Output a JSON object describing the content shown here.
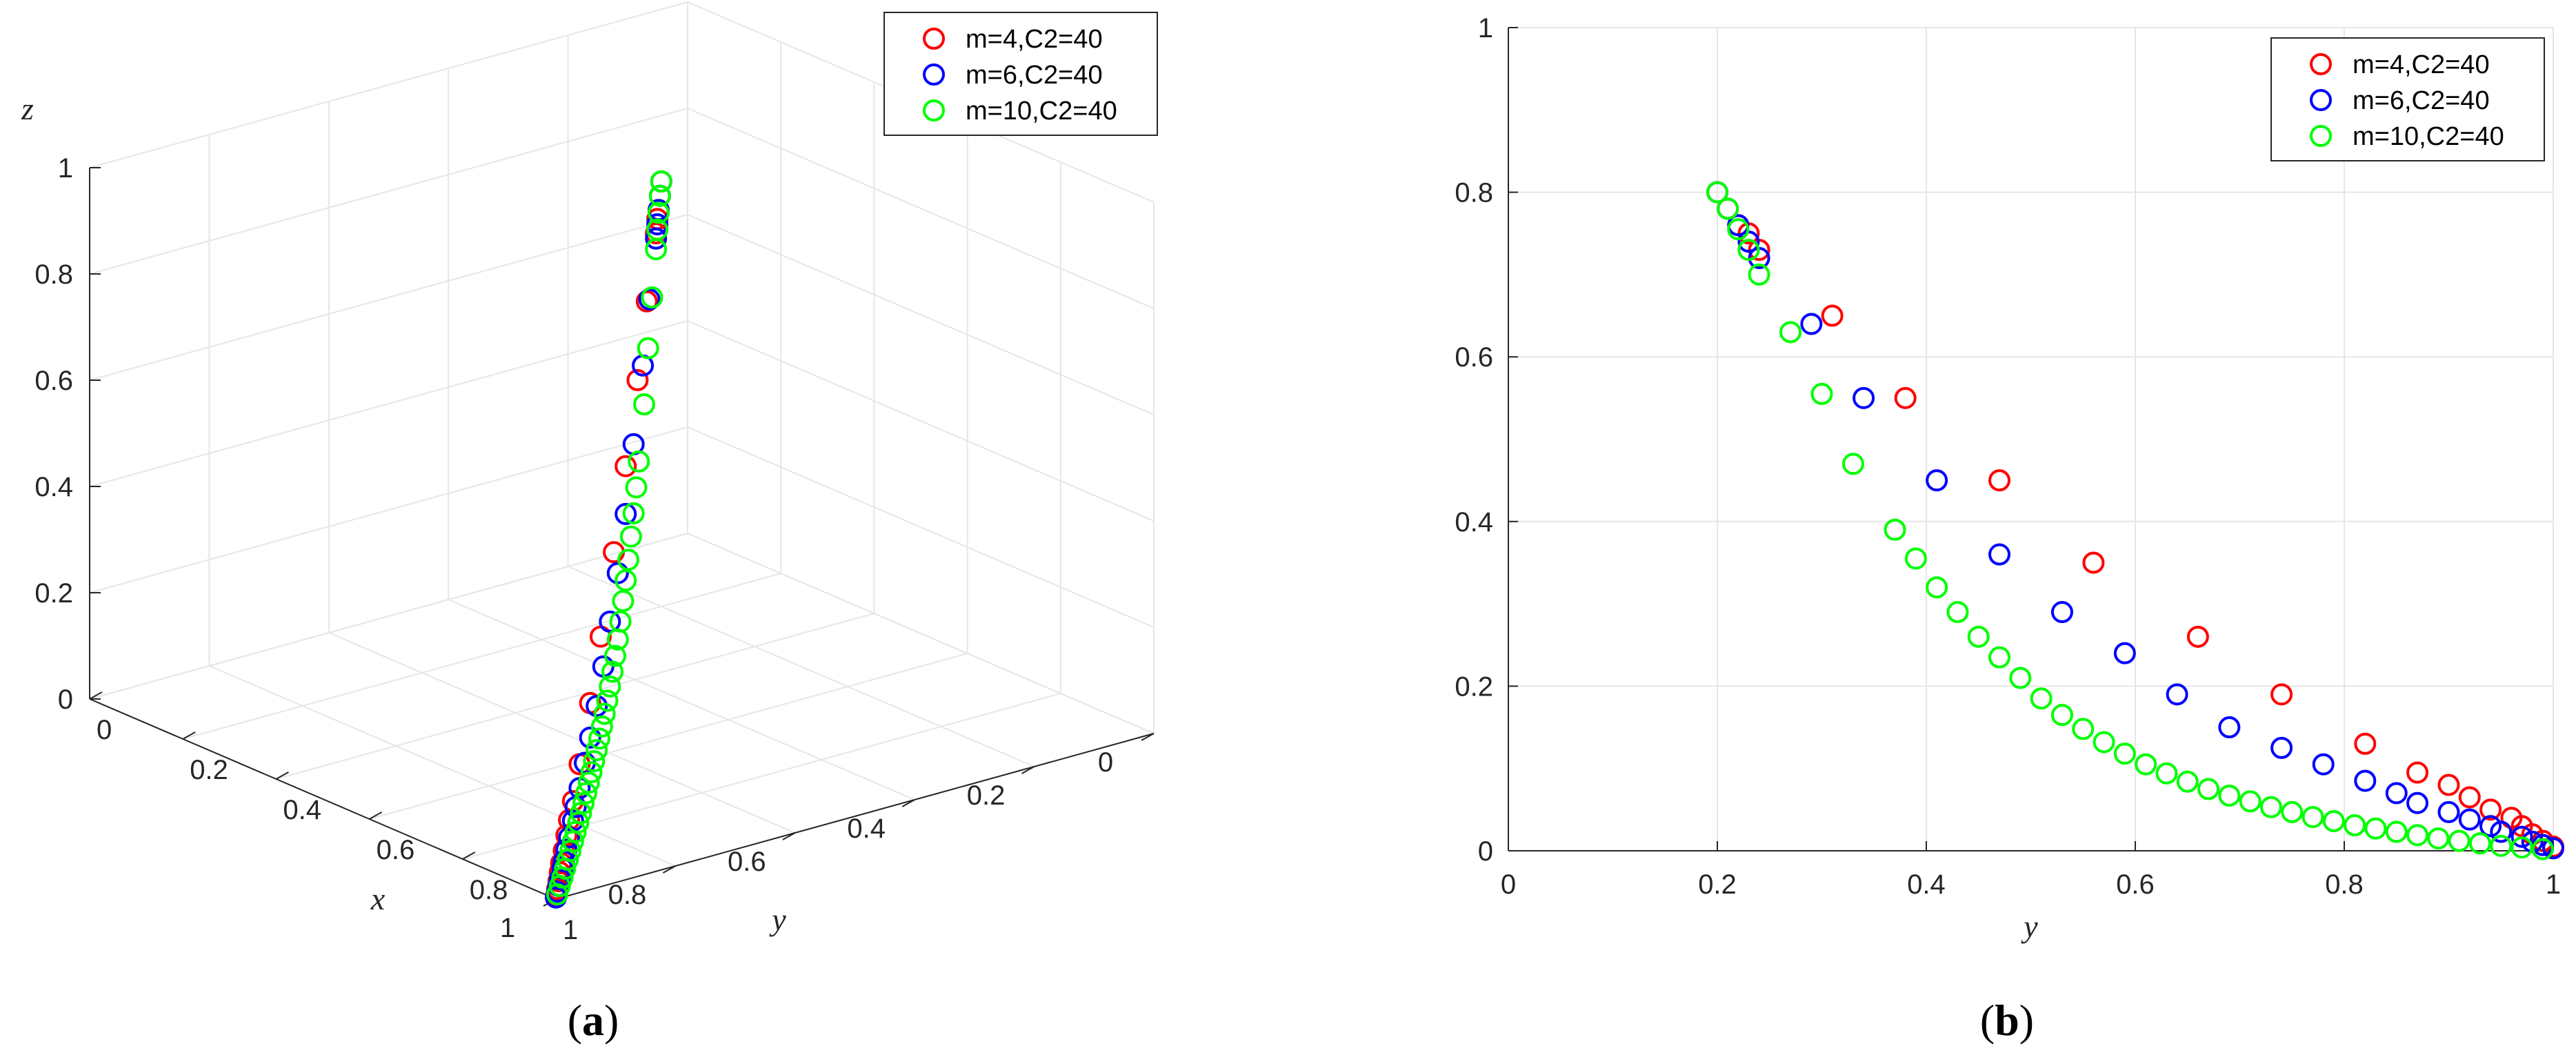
{
  "colors": {
    "s1": "#ff0000",
    "s2": "#0000ff",
    "s3": "#00ff00",
    "grid": "#e6e6e6",
    "axis": "#262626"
  },
  "legend": [
    {
      "label": "m=4,C2=40"
    },
    {
      "label": "m=6,C2=40"
    },
    {
      "label": "m=10,C2=40"
    }
  ],
  "captions": {
    "a": {
      "open": "(",
      "letter": "a",
      "close": ")"
    },
    "b": {
      "open": "(",
      "letter": "b",
      "close": ")"
    }
  },
  "chart_data": [
    {
      "id": "a",
      "type": "scatter",
      "projection": "3d",
      "xlabel": "x",
      "ylabel": "y",
      "zlabel": "z",
      "xlim": [
        0,
        1
      ],
      "ylim": [
        0,
        1
      ],
      "zlim": [
        0,
        1
      ],
      "xticks": [
        "0",
        "0.2",
        "0.4",
        "0.6",
        "0.8",
        "1"
      ],
      "yticks": [
        "0",
        "0.2",
        "0.4",
        "0.6",
        "0.8",
        "1"
      ],
      "zticks": [
        "0",
        "0.2",
        "0.4",
        "0.6",
        "0.8",
        "1"
      ],
      "grid": true,
      "legend_position": "top-right",
      "series": [
        {
          "name": "m=4,C2=40",
          "marker": "open-circle",
          "points": [
            [
              0.2,
              0.2,
              0.8
            ],
            [
              0.21,
              0.21,
              0.78
            ],
            [
              0.22,
              0.22,
              0.76
            ],
            [
              0.23,
              0.23,
              0.75
            ],
            [
              0.24,
              0.24,
              0.73
            ],
            [
              0.31,
              0.31,
              0.65
            ],
            [
              0.38,
              0.38,
              0.55
            ],
            [
              0.47,
              0.47,
              0.45
            ],
            [
              0.56,
              0.56,
              0.35
            ],
            [
              0.66,
              0.66,
              0.26
            ],
            [
              0.74,
              0.74,
              0.19
            ],
            [
              0.82,
              0.82,
              0.13
            ],
            [
              0.87,
              0.87,
              0.095
            ],
            [
              0.9,
              0.9,
              0.08
            ],
            [
              0.92,
              0.92,
              0.065
            ],
            [
              0.94,
              0.94,
              0.05
            ],
            [
              0.96,
              0.96,
              0.04
            ],
            [
              0.97,
              0.97,
              0.03
            ],
            [
              0.98,
              0.98,
              0.02
            ],
            [
              0.99,
              0.99,
              0.012
            ],
            [
              1.0,
              1.0,
              0.005
            ]
          ]
        },
        {
          "name": "m=6,C2=40",
          "marker": "open-circle",
          "points": [
            [
              0.2,
              0.2,
              0.8
            ],
            [
              0.21,
              0.21,
              0.78
            ],
            [
              0.22,
              0.22,
              0.76
            ],
            [
              0.23,
              0.23,
              0.74
            ],
            [
              0.24,
              0.24,
              0.72
            ],
            [
              0.29,
              0.29,
              0.64
            ],
            [
              0.34,
              0.34,
              0.55
            ],
            [
              0.41,
              0.41,
              0.45
            ],
            [
              0.47,
              0.47,
              0.36
            ],
            [
              0.53,
              0.53,
              0.29
            ],
            [
              0.59,
              0.59,
              0.24
            ],
            [
              0.64,
              0.64,
              0.19
            ],
            [
              0.69,
              0.69,
              0.15
            ],
            [
              0.74,
              0.74,
              0.125
            ],
            [
              0.78,
              0.78,
              0.105
            ],
            [
              0.82,
              0.82,
              0.085
            ],
            [
              0.85,
              0.85,
              0.07
            ],
            [
              0.87,
              0.87,
              0.058
            ],
            [
              0.9,
              0.9,
              0.047
            ],
            [
              0.92,
              0.92,
              0.038
            ],
            [
              0.94,
              0.94,
              0.03
            ],
            [
              0.95,
              0.95,
              0.023
            ],
            [
              0.97,
              0.97,
              0.017
            ],
            [
              0.98,
              0.98,
              0.011
            ],
            [
              0.99,
              0.99,
              0.007
            ],
            [
              1.0,
              1.0,
              0.003
            ]
          ]
        },
        {
          "name": "m=10,C2=40",
          "marker": "open-circle",
          "points": [
            [
              0.2,
              0.2,
              0.8
            ],
            [
              0.21,
              0.21,
              0.78
            ],
            [
              0.22,
              0.22,
              0.755
            ],
            [
              0.23,
              0.23,
              0.73
            ],
            [
              0.24,
              0.24,
              0.7
            ],
            [
              0.27,
              0.27,
              0.63
            ],
            [
              0.3,
              0.3,
              0.555
            ],
            [
              0.33,
              0.33,
              0.47
            ],
            [
              0.37,
              0.37,
              0.39
            ],
            [
              0.39,
              0.39,
              0.355
            ],
            [
              0.41,
              0.41,
              0.32
            ],
            [
              0.43,
              0.43,
              0.29
            ],
            [
              0.45,
              0.45,
              0.26
            ],
            [
              0.47,
              0.47,
              0.235
            ],
            [
              0.49,
              0.49,
              0.21
            ],
            [
              0.51,
              0.51,
              0.185
            ],
            [
              0.53,
              0.53,
              0.165
            ],
            [
              0.55,
              0.55,
              0.148
            ],
            [
              0.57,
              0.57,
              0.132
            ],
            [
              0.59,
              0.59,
              0.118
            ],
            [
              0.61,
              0.61,
              0.105
            ],
            [
              0.63,
              0.63,
              0.094
            ],
            [
              0.65,
              0.65,
              0.084
            ],
            [
              0.67,
              0.67,
              0.075
            ],
            [
              0.69,
              0.69,
              0.067
            ],
            [
              0.71,
              0.71,
              0.06
            ],
            [
              0.73,
              0.73,
              0.053
            ],
            [
              0.75,
              0.75,
              0.047
            ],
            [
              0.77,
              0.77,
              0.041
            ],
            [
              0.79,
              0.79,
              0.036
            ],
            [
              0.81,
              0.81,
              0.031
            ],
            [
              0.83,
              0.83,
              0.027
            ],
            [
              0.85,
              0.85,
              0.023
            ],
            [
              0.87,
              0.87,
              0.019
            ],
            [
              0.89,
              0.89,
              0.015
            ],
            [
              0.91,
              0.91,
              0.012
            ],
            [
              0.93,
              0.93,
              0.009
            ],
            [
              0.95,
              0.95,
              0.006
            ],
            [
              0.97,
              0.97,
              0.004
            ],
            [
              0.99,
              0.99,
              0.002
            ]
          ]
        }
      ]
    },
    {
      "id": "b",
      "type": "scatter",
      "xlabel": "y",
      "ylabel": "",
      "xlim": [
        0,
        1
      ],
      "ylim": [
        0,
        1
      ],
      "xticks": [
        "0",
        "0.2",
        "0.4",
        "0.6",
        "0.8",
        "1"
      ],
      "yticks": [
        "0",
        "0.2",
        "0.4",
        "0.6",
        "0.8",
        "1"
      ],
      "grid": true,
      "legend_position": "top-right",
      "series": [
        {
          "name": "m=4,C2=40",
          "marker": "open-circle",
          "x": [
            0.2,
            0.21,
            0.22,
            0.23,
            0.24,
            0.31,
            0.38,
            0.47,
            0.56,
            0.66,
            0.74,
            0.82,
            0.87,
            0.9,
            0.92,
            0.94,
            0.96,
            0.97,
            0.98,
            0.99,
            1.0
          ],
          "y": [
            0.8,
            0.78,
            0.76,
            0.75,
            0.73,
            0.65,
            0.55,
            0.45,
            0.35,
            0.26,
            0.19,
            0.13,
            0.095,
            0.08,
            0.065,
            0.05,
            0.04,
            0.03,
            0.02,
            0.012,
            0.005
          ]
        },
        {
          "name": "m=6,C2=40",
          "marker": "open-circle",
          "x": [
            0.2,
            0.21,
            0.22,
            0.23,
            0.24,
            0.29,
            0.34,
            0.41,
            0.47,
            0.53,
            0.59,
            0.64,
            0.69,
            0.74,
            0.78,
            0.82,
            0.85,
            0.87,
            0.9,
            0.92,
            0.94,
            0.95,
            0.97,
            0.98,
            0.99,
            1.0
          ],
          "y": [
            0.8,
            0.78,
            0.76,
            0.74,
            0.72,
            0.64,
            0.55,
            0.45,
            0.36,
            0.29,
            0.24,
            0.19,
            0.15,
            0.125,
            0.105,
            0.085,
            0.07,
            0.058,
            0.047,
            0.038,
            0.03,
            0.023,
            0.017,
            0.011,
            0.007,
            0.003
          ]
        },
        {
          "name": "m=10,C2=40",
          "marker": "open-circle",
          "x": [
            0.2,
            0.21,
            0.22,
            0.23,
            0.24,
            0.27,
            0.3,
            0.33,
            0.37,
            0.39,
            0.41,
            0.43,
            0.45,
            0.47,
            0.49,
            0.51,
            0.53,
            0.55,
            0.57,
            0.59,
            0.61,
            0.63,
            0.65,
            0.67,
            0.69,
            0.71,
            0.73,
            0.75,
            0.77,
            0.79,
            0.81,
            0.83,
            0.85,
            0.87,
            0.89,
            0.91,
            0.93,
            0.95,
            0.97,
            0.99
          ],
          "y": [
            0.8,
            0.78,
            0.755,
            0.73,
            0.7,
            0.63,
            0.555,
            0.47,
            0.39,
            0.355,
            0.32,
            0.29,
            0.26,
            0.235,
            0.21,
            0.185,
            0.165,
            0.148,
            0.132,
            0.118,
            0.105,
            0.094,
            0.084,
            0.075,
            0.067,
            0.06,
            0.053,
            0.047,
            0.041,
            0.036,
            0.031,
            0.027,
            0.023,
            0.019,
            0.015,
            0.012,
            0.009,
            0.006,
            0.004,
            0.002
          ]
        }
      ]
    }
  ]
}
